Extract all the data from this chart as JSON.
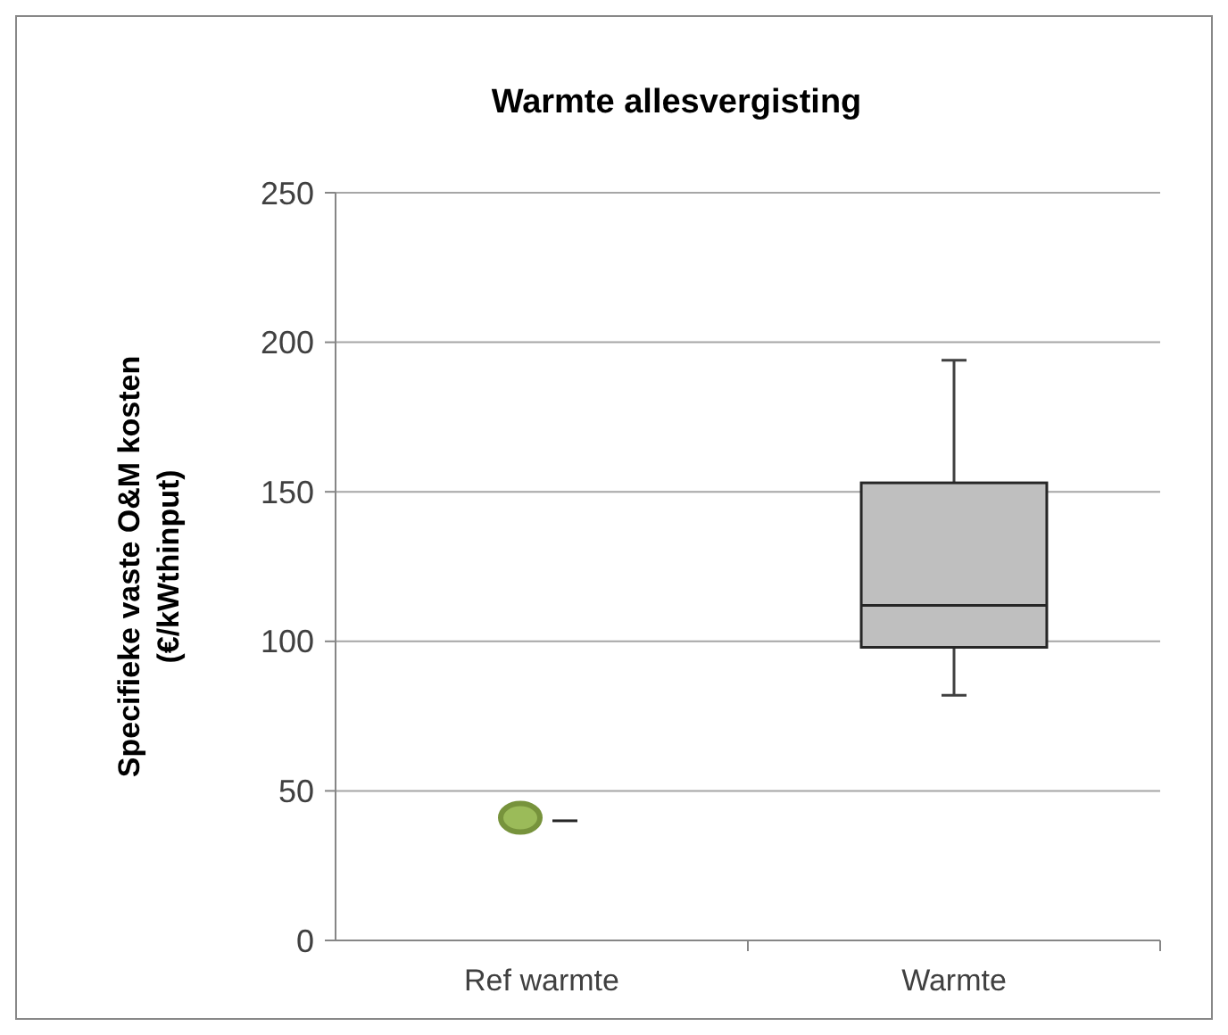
{
  "chart_data": {
    "type": "box",
    "title": "Warmte allesvergisting",
    "ylabel": "Specifieke vaste O&M kosten (€/kWthinput)",
    "categories": [
      "Ref warmte",
      "Warmte"
    ],
    "boxes": [
      {
        "low": 40,
        "q1": 40,
        "median": 40,
        "q3": 40,
        "high": 40
      },
      {
        "low": 82,
        "q1": 98,
        "median": 112,
        "q3": 153,
        "high": 194
      }
    ],
    "colors": [
      "#262626",
      "#bfbfbf"
    ],
    "series": [
      {
        "type": "scatter",
        "values": [
          41,
          null
        ],
        "color": "#77933c",
        "marker": "circle"
      }
    ],
    "ylim": [
      0,
      250
    ],
    "yticks": [
      0,
      50,
      100,
      150,
      200,
      250
    ],
    "grid": "y"
  }
}
